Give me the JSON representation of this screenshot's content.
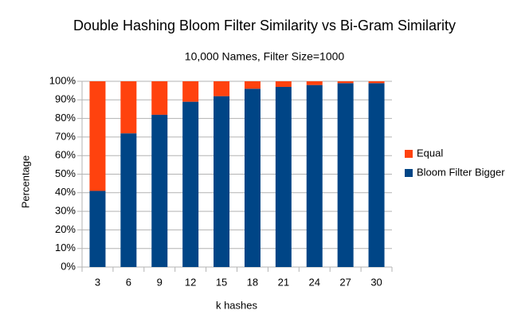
{
  "chart_data": {
    "type": "stacked_bar",
    "title": "Double Hashing Bloom Filter Similarity vs Bi-Gram Similarity",
    "subtitle": "10,000 Names, Filter Size=1000",
    "x_label": "k hashes",
    "y_label": "Percentage",
    "categories": [
      "3",
      "6",
      "9",
      "12",
      "15",
      "18",
      "21",
      "24",
      "27",
      "30"
    ],
    "series": [
      {
        "name": "Bloom Filter Bigger",
        "color": "#004586",
        "values": [
          41,
          72,
          82,
          89,
          92,
          96,
          97,
          98,
          99,
          99
        ]
      },
      {
        "name": "Equal",
        "color": "#ff420e",
        "values": [
          59,
          28,
          18,
          11,
          8,
          4,
          3,
          2,
          1,
          1
        ]
      }
    ],
    "ylim": [
      0,
      100
    ],
    "yticks": [
      {
        "value": 0,
        "label": "0%"
      },
      {
        "value": 10,
        "label": "10%"
      },
      {
        "value": 20,
        "label": "20%"
      },
      {
        "value": 30,
        "label": "30%"
      },
      {
        "value": 40,
        "label": "40%"
      },
      {
        "value": 50,
        "label": "50%"
      },
      {
        "value": 60,
        "label": "60%"
      },
      {
        "value": 70,
        "label": "70%"
      },
      {
        "value": 80,
        "label": "80%"
      },
      {
        "value": 90,
        "label": "90%"
      },
      {
        "value": 100,
        "label": "100%"
      }
    ],
    "grid": true,
    "legend": "right"
  }
}
